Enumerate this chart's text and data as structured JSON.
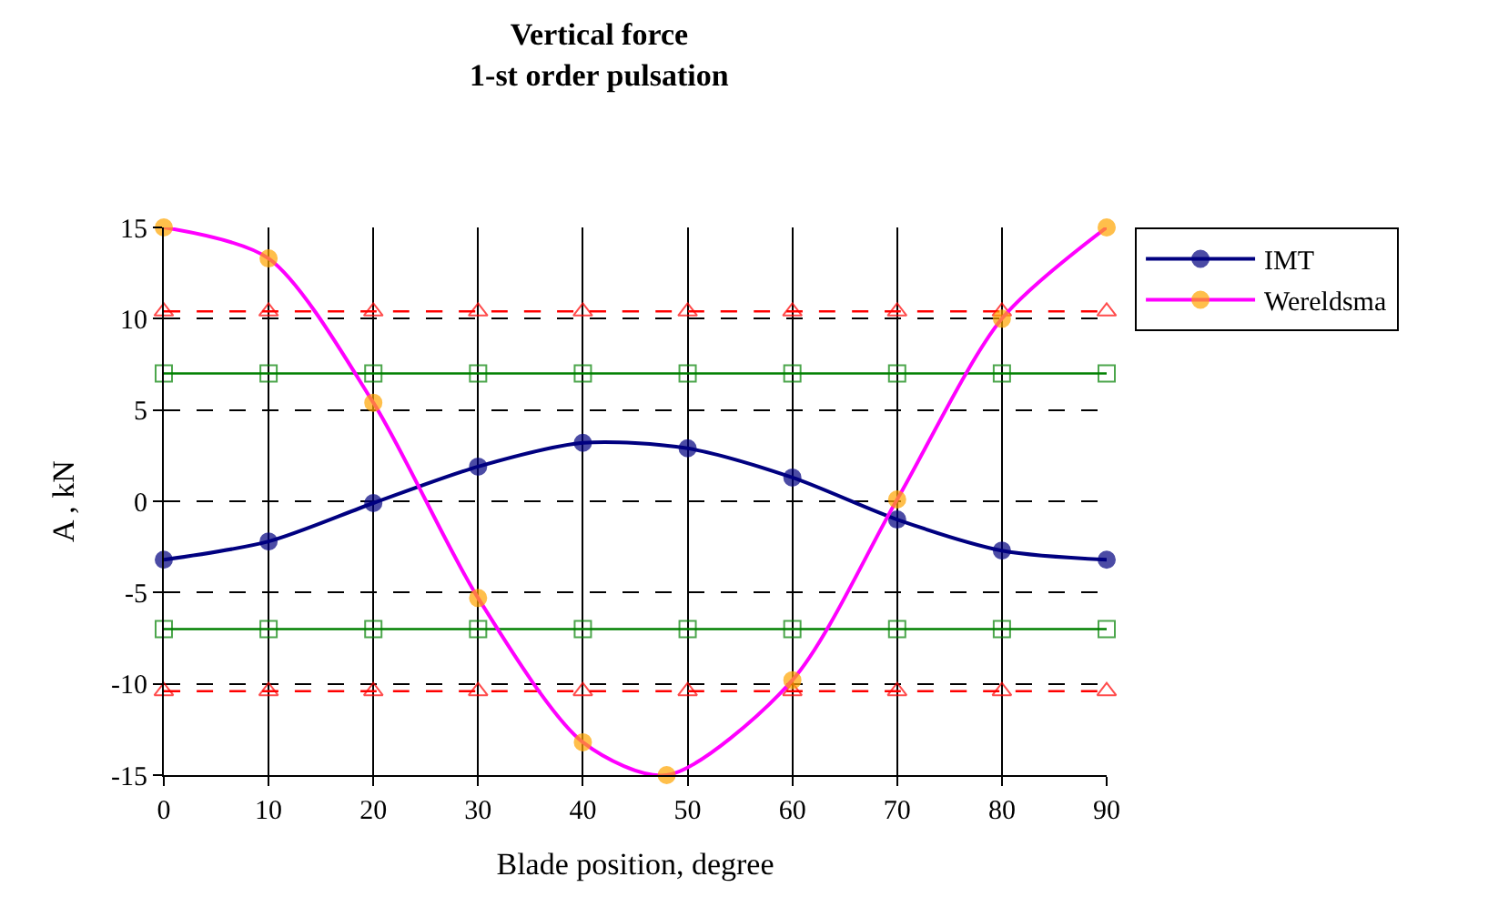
{
  "chart_data": {
    "type": "line",
    "title": "Vertical force\n1-st order pulsation",
    "xlabel": "Blade position, degree",
    "ylabel": "A , kN",
    "x": [
      0,
      10,
      20,
      30,
      40,
      50,
      60,
      70,
      80,
      90
    ],
    "series": [
      {
        "name": "IMT",
        "color": "#000080",
        "marker": "circle",
        "line_style": "solid",
        "values": [
          -3.2,
          -2.2,
          -0.1,
          1.9,
          3.2,
          2.9,
          1.3,
          -1.0,
          -2.7,
          -3.2
        ]
      },
      {
        "color": "#008000",
        "marker": "square",
        "line_style": "solid",
        "values": [
          7,
          7,
          7,
          7,
          7,
          7,
          7,
          7,
          7,
          7
        ]
      },
      {
        "color": "#ff0000",
        "marker": "triangle",
        "line_style": "dashed",
        "values": [
          10.4,
          10.4,
          10.4,
          10.4,
          10.4,
          10.4,
          10.4,
          10.4,
          10.4,
          10.4
        ]
      },
      {
        "color": "#008000",
        "marker": "square",
        "line_style": "solid",
        "values": [
          -7,
          -7,
          -7,
          -7,
          -7,
          -7,
          -7,
          -7,
          -7,
          -7
        ]
      },
      {
        "color": "#ff0000",
        "marker": "triangle",
        "line_style": "dashed",
        "values": [
          -10.4,
          -10.4,
          -10.4,
          -10.4,
          -10.4,
          -10.4,
          -10.4,
          -10.4,
          -10.4,
          -10.4
        ]
      },
      {
        "name": "Wereldsma",
        "color": "#ff00ff",
        "marker": "circle",
        "line_style": "solid",
        "x": [
          0,
          10,
          20,
          30,
          40,
          48,
          60,
          70,
          80,
          90
        ],
        "values": [
          15.0,
          13.3,
          5.4,
          -5.3,
          -13.2,
          -15.0,
          -9.8,
          0.1,
          10.0,
          15.0
        ]
      }
    ],
    "xlim": [
      0,
      90
    ],
    "xticks": [
      0,
      10,
      20,
      30,
      40,
      50,
      60,
      70,
      80,
      90
    ],
    "ylim": [
      -15,
      15
    ],
    "yticks": [
      -15,
      -10,
      -5,
      0,
      5,
      10,
      15
    ],
    "grid": true,
    "legend": "right"
  }
}
